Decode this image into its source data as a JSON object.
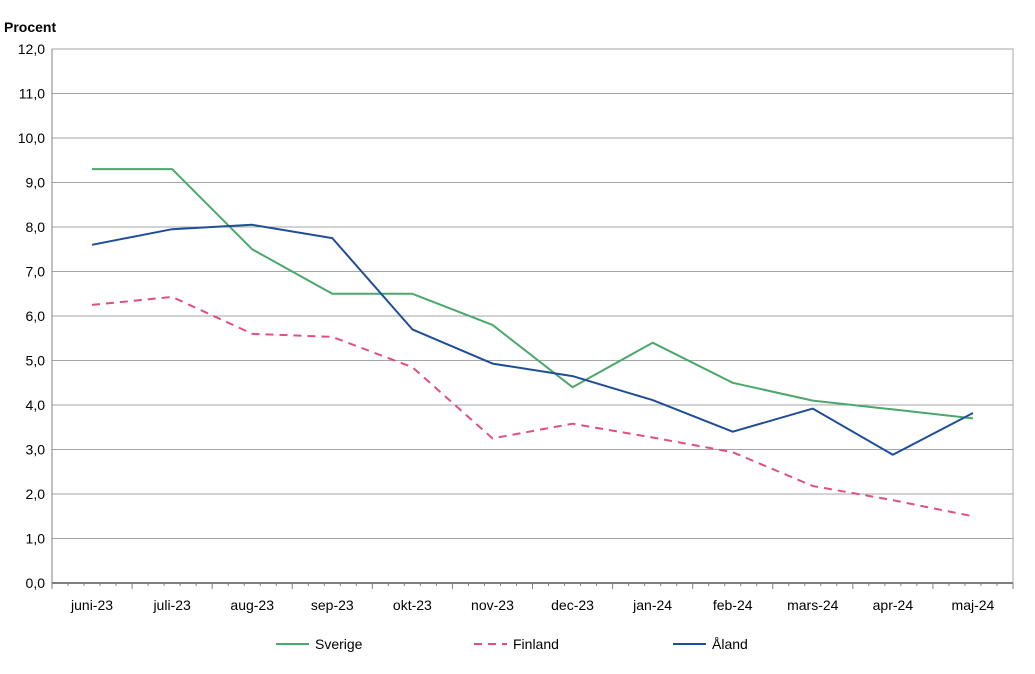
{
  "chart_data": {
    "type": "line",
    "ylabel": "Procent",
    "categories": [
      "juni-23",
      "juli-23",
      "aug-23",
      "sep-23",
      "okt-23",
      "nov-23",
      "dec-23",
      "jan-24",
      "feb-24",
      "mars-24",
      "apr-24",
      "maj-24"
    ],
    "ylim": [
      0,
      12
    ],
    "ytick_step": 1,
    "ytick_labels": [
      "0,0",
      "1,0",
      "2,0",
      "3,0",
      "4,0",
      "5,0",
      "6,0",
      "7,0",
      "8,0",
      "9,0",
      "10,0",
      "11,0",
      "12,0"
    ],
    "grid": true,
    "legend_position": "bottom",
    "series": [
      {
        "name": "Sverige",
        "color": "#4aa86a",
        "dash": "solid",
        "values": [
          9.3,
          9.3,
          7.5,
          6.5,
          6.5,
          5.8,
          4.4,
          5.4,
          4.5,
          4.1,
          3.9,
          3.7
        ]
      },
      {
        "name": "Finland",
        "color": "#e0507a",
        "dash": "dashed",
        "values": [
          6.25,
          6.43,
          5.6,
          5.53,
          4.85,
          3.25,
          3.58,
          3.27,
          2.94,
          2.18,
          1.86,
          1.5
        ]
      },
      {
        "name": "Åland",
        "color": "#1f4e99",
        "dash": "solid",
        "values": [
          7.6,
          7.95,
          8.05,
          7.75,
          5.7,
          4.93,
          4.65,
          4.11,
          3.4,
          3.92,
          2.88,
          3.82
        ]
      }
    ]
  }
}
